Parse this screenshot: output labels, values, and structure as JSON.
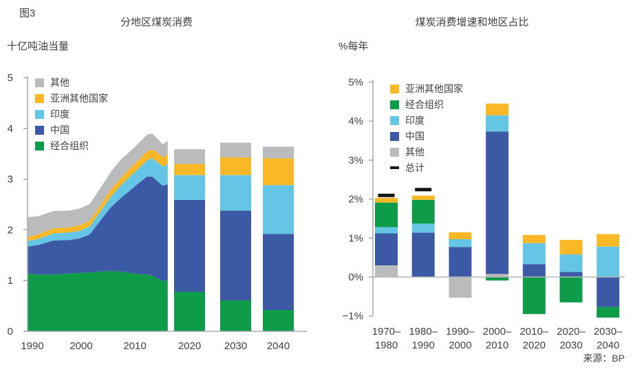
{
  "figure_label": "图3",
  "source_label": "来源：BP",
  "colors": {
    "other": "#b9bbbd",
    "other_asia": "#fbb826",
    "india": "#64c5e4",
    "china": "#3b59a5",
    "oecd": "#0f9c49",
    "total": "#141414",
    "axis": "#a9adb0",
    "zero_line": "#b3b6b8",
    "text": "#3e4142"
  },
  "chart_data": [
    {
      "type": "area",
      "title": "分地区煤炭消费",
      "ylabel": "十亿吨油当量",
      "ylim": [
        0,
        5
      ],
      "y_ticks": [
        0,
        1,
        2,
        3,
        4,
        5
      ],
      "x_tick_labels": [
        "1990",
        "2000",
        "2010",
        "2020",
        "2030",
        "2040"
      ],
      "legend": [
        {
          "key": "other",
          "label": "其他"
        },
        {
          "key": "other_asia",
          "label": "亚洲其他国家"
        },
        {
          "key": "india",
          "label": "印度"
        },
        {
          "key": "china",
          "label": "中国"
        },
        {
          "key": "oecd",
          "label": "经合组织"
        }
      ],
      "stack_order": [
        "oecd",
        "china",
        "india",
        "other_asia",
        "other"
      ],
      "area_years": [
        1990,
        1992,
        1995,
        1998,
        2000,
        2002,
        2004,
        2006,
        2008,
        2010,
        2012,
        2013,
        2014,
        2015,
        2016,
        2017
      ],
      "area_series": {
        "oecd": [
          1.14,
          1.12,
          1.12,
          1.14,
          1.15,
          1.16,
          1.18,
          1.19,
          1.18,
          1.15,
          1.12,
          1.12,
          1.1,
          1.04,
          1.0,
          1.0
        ],
        "china": [
          0.53,
          0.58,
          0.67,
          0.66,
          0.68,
          0.75,
          1.0,
          1.25,
          1.45,
          1.65,
          1.85,
          1.93,
          1.95,
          1.92,
          1.87,
          1.9
        ],
        "india": [
          0.11,
          0.12,
          0.14,
          0.15,
          0.15,
          0.16,
          0.18,
          0.21,
          0.25,
          0.28,
          0.3,
          0.32,
          0.36,
          0.38,
          0.38,
          0.4
        ],
        "other_asia": [
          0.08,
          0.09,
          0.1,
          0.1,
          0.11,
          0.11,
          0.12,
          0.14,
          0.15,
          0.16,
          0.17,
          0.18,
          0.18,
          0.18,
          0.18,
          0.19
        ],
        "other": [
          0.39,
          0.36,
          0.34,
          0.33,
          0.33,
          0.33,
          0.34,
          0.35,
          0.36,
          0.33,
          0.33,
          0.33,
          0.31,
          0.28,
          0.26,
          0.26
        ]
      },
      "bars": [
        {
          "label": "2020",
          "total": 3.59,
          "values": {
            "oecd": 0.78,
            "china": 1.81,
            "india": 0.49,
            "other_asia": 0.22,
            "other": 0.29
          }
        },
        {
          "label": "2030",
          "total": 3.72,
          "values": {
            "oecd": 0.61,
            "china": 1.77,
            "india": 0.7,
            "other_asia": 0.35,
            "other": 0.29
          }
        },
        {
          "label": "2040",
          "total": 3.64,
          "values": {
            "oecd": 0.42,
            "china": 1.5,
            "india": 0.96,
            "other_asia": 0.53,
            "other": 0.23
          }
        }
      ]
    },
    {
      "type": "bar",
      "title": "煤炭消费增速和地区占比",
      "ylabel": "%每年",
      "ylim": [
        -1,
        5
      ],
      "y_tick_values": [
        5,
        4,
        3,
        2,
        1,
        0,
        -1
      ],
      "y_tick_labels": [
        "5%",
        "4%",
        "3%",
        "2%",
        "1%",
        "0%",
        "−1%"
      ],
      "legend": [
        {
          "key": "other_asia",
          "label": "亚洲其他国家"
        },
        {
          "key": "oecd",
          "label": "经合组织"
        },
        {
          "key": "india",
          "label": "印度"
        },
        {
          "key": "china",
          "label": "中国"
        },
        {
          "key": "other",
          "label": "其他"
        },
        {
          "key": "total",
          "label": "总计"
        }
      ],
      "bars": [
        {
          "label_top": "1970–",
          "label_bottom": "1980",
          "total": 2.05,
          "total_marker": true,
          "segments": [
            [
              "other",
              0.3
            ],
            [
              "china",
              0.82
            ],
            [
              "india",
              0.16
            ],
            [
              "oecd",
              0.63
            ],
            [
              "other_asia",
              0.12
            ]
          ]
        },
        {
          "label_top": "1980–",
          "label_bottom": "1990",
          "total": 2.2,
          "total_marker": true,
          "segments": [
            [
              "china",
              1.14
            ],
            [
              "india",
              0.23
            ],
            [
              "oecd",
              0.61
            ],
            [
              "other_asia",
              0.11
            ]
          ]
        },
        {
          "label_top": "1990–",
          "label_bottom": "2000",
          "total": 0.62,
          "total_marker": false,
          "segments": [
            [
              "china",
              0.77
            ],
            [
              "india",
              0.2
            ],
            [
              "other_asia",
              0.18
            ],
            [
              "other",
              -0.53
            ]
          ]
        },
        {
          "label_top": "2000–",
          "label_bottom": "2010",
          "total": 4.36,
          "total_marker": false,
          "segments": [
            [
              "other",
              0.08
            ],
            [
              "china",
              3.65
            ],
            [
              "india",
              0.42
            ],
            [
              "other_asia",
              0.3
            ],
            [
              "oecd",
              -0.09
            ]
          ]
        },
        {
          "label_top": "2010–",
          "label_bottom": "2020",
          "total": 0.13,
          "total_marker": false,
          "segments": [
            [
              "china",
              0.33
            ],
            [
              "india",
              0.54
            ],
            [
              "other_asia",
              0.21
            ],
            [
              "oecd",
              -0.95
            ]
          ]
        },
        {
          "label_top": "2020–",
          "label_bottom": "2030",
          "total": 0.3,
          "total_marker": false,
          "segments": [
            [
              "china",
              0.13
            ],
            [
              "india",
              0.45
            ],
            [
              "other_asia",
              0.37
            ],
            [
              "oecd",
              -0.65
            ]
          ]
        },
        {
          "label_top": "2030–",
          "label_bottom": "2040",
          "total": 0.06,
          "total_marker": false,
          "segments": [
            [
              "india",
              0.78
            ],
            [
              "other_asia",
              0.32
            ],
            [
              "china",
              -0.77
            ],
            [
              "oecd",
              -0.27
            ]
          ]
        }
      ]
    }
  ]
}
